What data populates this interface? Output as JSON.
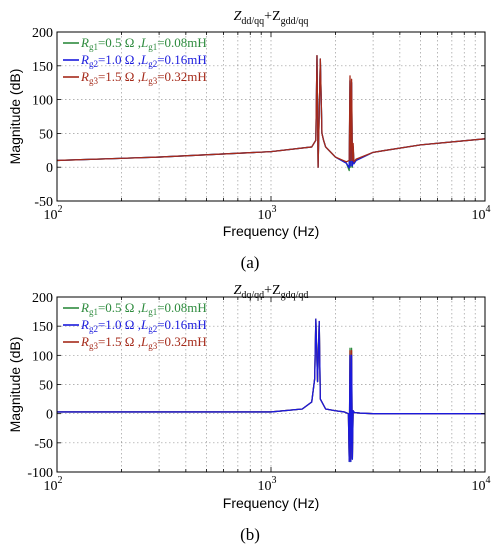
{
  "chart_data": [
    {
      "type": "line",
      "panel_label": "(a)",
      "title_main": "Z",
      "title_sub1": "dd/qq",
      "title_mid": "+Z",
      "title_sub2": "gdd/qq",
      "xlabel": "Frequency  (Hz)",
      "ylabel": "Magnitude (dB)",
      "xscale": "log",
      "xlim": [
        100,
        10000
      ],
      "ylim": [
        -50,
        200
      ],
      "yticks": [
        "200",
        "150",
        "100",
        "50",
        "0",
        "-50"
      ],
      "xticks": [
        {
          "base": "10",
          "exp": "2"
        },
        {
          "base": "10",
          "exp": "3"
        },
        {
          "base": "10",
          "exp": "4"
        }
      ],
      "grid": true,
      "legend_position": "top-left",
      "series": [
        {
          "color": "#2e8b3e",
          "r_sym": "R",
          "r_sub": "g1",
          "r_val": "=0.5 Ω ,",
          "l_sym": "L",
          "l_sub": "g1",
          "l_val": "=0.08mH",
          "x": [
            100,
            300,
            1000,
            1550,
            1620,
            1640,
            1660,
            1700,
            1730,
            1760,
            1800,
            2000,
            2250,
            2320,
            2340,
            2360,
            2380,
            2400,
            2420,
            2440,
            2500,
            3000,
            5000,
            10000
          ],
          "y": [
            10,
            15,
            23,
            30,
            40,
            165,
            0,
            160,
            50,
            40,
            30,
            15,
            6,
            -5,
            128,
            0,
            125,
            0,
            30,
            5,
            10,
            22,
            33,
            42
          ]
        },
        {
          "color": "#1a1adc",
          "r_sym": "R",
          "r_sub": "g2",
          "r_val": "=1.0 Ω ,",
          "l_sym": "L",
          "l_sub": "g2",
          "l_val": "=0.16mH",
          "x": [
            100,
            300,
            1000,
            1550,
            1620,
            1640,
            1660,
            1700,
            1730,
            1760,
            1800,
            2000,
            2250,
            2320,
            2340,
            2360,
            2380,
            2400,
            2420,
            2440,
            2500,
            3000,
            5000,
            10000
          ],
          "y": [
            10,
            15,
            23,
            30,
            40,
            165,
            0,
            160,
            50,
            40,
            30,
            15,
            6,
            -1,
            128,
            2,
            125,
            2,
            30,
            5,
            10,
            22,
            33,
            42
          ]
        },
        {
          "color": "#a52a1a",
          "r_sym": "R",
          "r_sub": "g3",
          "r_val": "=1.5 Ω ,",
          "l_sym": "L",
          "l_sub": "g3",
          "l_val": "=0.32mH",
          "x": [
            100,
            300,
            1000,
            1550,
            1620,
            1640,
            1660,
            1700,
            1730,
            1760,
            1800,
            2000,
            2250,
            2320,
            2340,
            2360,
            2380,
            2400,
            2420,
            2440,
            2500,
            3000,
            5000,
            10000
          ],
          "y": [
            10,
            15,
            23,
            30,
            40,
            165,
            0,
            160,
            50,
            40,
            30,
            15,
            8,
            10,
            135,
            10,
            130,
            10,
            35,
            8,
            12,
            22,
            33,
            42
          ]
        }
      ]
    },
    {
      "type": "line",
      "panel_label": "(b)",
      "title_main": "Z",
      "title_sub1": "dq/qd",
      "title_mid": "+Z",
      "title_sub2": "gdq/qd",
      "xlabel": "Frequency  (Hz)",
      "ylabel": "Magnitude (dB)",
      "xscale": "log",
      "xlim": [
        100,
        10000
      ],
      "ylim": [
        -100,
        200
      ],
      "yticks": [
        "200",
        "150",
        "100",
        "50",
        "0",
        "-50",
        "-100"
      ],
      "xticks": [
        {
          "base": "10",
          "exp": "2"
        },
        {
          "base": "10",
          "exp": "3"
        },
        {
          "base": "10",
          "exp": "4"
        }
      ],
      "grid": true,
      "legend_position": "top-left",
      "series": [
        {
          "color": "#2e8b3e",
          "r_sym": "R",
          "r_sub": "g1",
          "r_val": "=0.5 Ω ,",
          "l_sym": "L",
          "l_sub": "g1",
          "l_val": "=0.08mH",
          "x": [
            100,
            1000,
            1400,
            1550,
            1600,
            1620,
            1650,
            1680,
            1700,
            1800,
            2000,
            2200,
            2300,
            2320,
            2340,
            2360,
            2380,
            2400,
            2420,
            2450,
            2600,
            3000,
            5000,
            10000
          ],
          "y": [
            3,
            3,
            8,
            20,
            60,
            162,
            55,
            158,
            25,
            8,
            5,
            3,
            0,
            -82,
            112,
            -82,
            112,
            -78,
            5,
            2,
            1,
            0,
            0,
            0
          ]
        },
        {
          "color": "#a52a1a",
          "r_sym": "R",
          "r_sub": "g3",
          "r_val": "=1.5 Ω ,",
          "l_sym": "L",
          "l_sub": "g3",
          "l_val": "=0.32mH",
          "x": [
            100,
            1000,
            1400,
            1550,
            1600,
            1620,
            1650,
            1680,
            1700,
            1800,
            2000,
            2200,
            2300,
            2320,
            2340,
            2360,
            2380,
            2400,
            2420,
            2450,
            2600,
            3000,
            5000,
            10000
          ],
          "y": [
            3,
            3,
            8,
            20,
            60,
            162,
            55,
            158,
            25,
            8,
            5,
            3,
            0,
            -80,
            108,
            -80,
            108,
            -75,
            5,
            2,
            1,
            0,
            0,
            0
          ]
        },
        {
          "color": "#1a1adc",
          "r_sym": "R",
          "r_sub": "g2",
          "r_val": "=1.0 Ω ,",
          "l_sym": "L",
          "l_sub": "g2",
          "l_val": "=0.16mH",
          "x": [
            100,
            1000,
            1400,
            1550,
            1600,
            1620,
            1650,
            1680,
            1700,
            1800,
            2000,
            2200,
            2300,
            2320,
            2340,
            2360,
            2380,
            2400,
            2420,
            2450,
            2600,
            3000,
            5000,
            10000
          ],
          "y": [
            3,
            3,
            8,
            20,
            60,
            162,
            55,
            158,
            25,
            8,
            5,
            3,
            0,
            -82,
            100,
            -82,
            100,
            -78,
            5,
            2,
            1,
            0,
            0,
            0
          ]
        }
      ],
      "legend_order": [
        0,
        2,
        1
      ]
    }
  ]
}
